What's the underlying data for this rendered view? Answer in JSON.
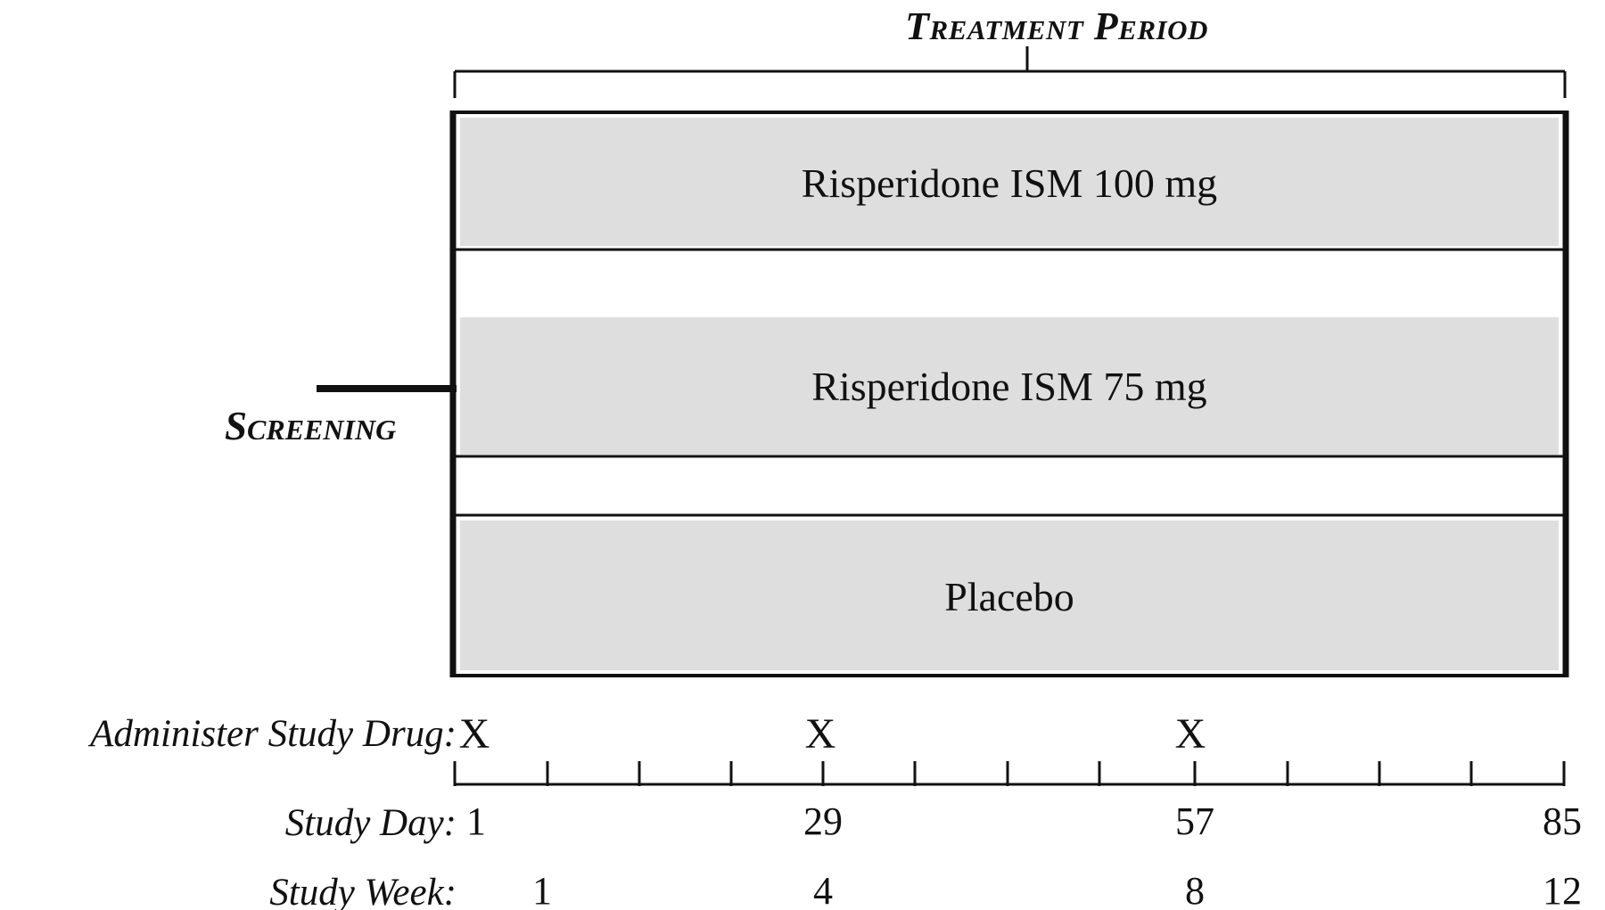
{
  "title": "Treatment Period",
  "screening_label": "Screening",
  "arms": [
    {
      "label": "Risperidone ISM 100 mg"
    },
    {
      "label": "Risperidone ISM 75 mg"
    },
    {
      "label": "Placebo"
    }
  ],
  "rows": {
    "administer": "Administer Study Drug:",
    "day": "Study Day:",
    "week": "Study Week:"
  },
  "administer_marks": [
    "X",
    "X",
    "X"
  ],
  "study_days": [
    "1",
    "29",
    "57",
    "85"
  ],
  "study_weeks": [
    "1",
    "4",
    "8",
    "12"
  ],
  "colors": {
    "arm_fill": "#dedede",
    "line": "#111111",
    "background": "#ffffff"
  }
}
